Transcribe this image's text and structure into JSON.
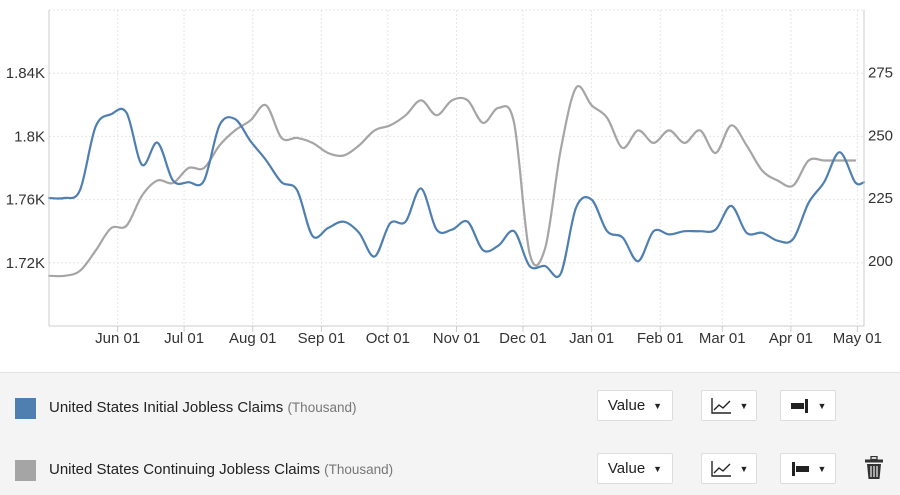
{
  "chart_data": {
    "type": "line",
    "x_tick_labels": [
      "Jun 01",
      "Jul 01",
      "Aug 01",
      "Sep 01",
      "Oct 01",
      "Nov 01",
      "Dec 01",
      "Jan 01",
      "Feb 01",
      "Mar 01",
      "Apr 01",
      "May 01"
    ],
    "x_tick_days": [
      31,
      61,
      92,
      123,
      153,
      184,
      214,
      245,
      276,
      304,
      335,
      365
    ],
    "x_range_days": [
      0,
      368
    ],
    "left_axis": {
      "tick_labels": [
        "1.72K",
        "1.76K",
        "1.8K",
        "1.84K"
      ],
      "tick_values": [
        1720,
        1760,
        1800,
        1840
      ],
      "range": [
        1680,
        1880
      ]
    },
    "right_axis": {
      "tick_labels": [
        "200",
        "225",
        "250",
        "275"
      ],
      "tick_values": [
        200,
        225,
        250,
        275
      ],
      "range": [
        174,
        300
      ]
    },
    "grid": true,
    "series": [
      {
        "name": "United States Initial Jobless Claims",
        "unit": "(Thousand)",
        "axis": "left",
        "color": "#4f7fb0",
        "x": [
          0,
          7,
          14,
          21,
          28,
          35,
          42,
          49,
          56,
          63,
          70,
          77,
          84,
          91,
          98,
          105,
          112,
          119,
          126,
          133,
          140,
          147,
          154,
          161,
          168,
          175,
          182,
          189,
          196,
          203,
          210,
          217,
          224,
          231,
          238,
          245,
          252,
          259,
          266,
          273,
          280,
          287,
          294,
          301,
          308,
          315,
          322,
          329,
          336,
          343,
          350,
          357,
          364,
          368
        ],
        "values": [
          1761,
          1761,
          1766,
          1806,
          1814,
          1815,
          1782,
          1796,
          1772,
          1771,
          1772,
          1807,
          1811,
          1797,
          1785,
          1771,
          1766,
          1737,
          1742,
          1746,
          1739,
          1724,
          1745,
          1746,
          1767,
          1741,
          1741,
          1746,
          1728,
          1731,
          1740,
          1718,
          1718,
          1713,
          1755,
          1760,
          1740,
          1736,
          1721,
          1740,
          1738,
          1740,
          1740,
          1741,
          1756,
          1739,
          1739,
          1734,
          1735,
          1758,
          1771,
          1790,
          1771,
          1771
        ]
      },
      {
        "name": "United States Continuing Jobless Claims",
        "unit": "(Thousand)",
        "axis": "right",
        "color": "#a5a5a5",
        "x": [
          0,
          7,
          14,
          21,
          28,
          35,
          42,
          49,
          56,
          63,
          70,
          77,
          84,
          91,
          98,
          105,
          112,
          119,
          126,
          133,
          140,
          147,
          154,
          161,
          168,
          175,
          182,
          189,
          196,
          203,
          210,
          217,
          224,
          231,
          238,
          245,
          252,
          259,
          266,
          273,
          280,
          287,
          294,
          301,
          308,
          315,
          322,
          329,
          336,
          343,
          350,
          357,
          364
        ],
        "values": [
          194,
          194,
          196,
          204,
          213,
          214,
          226,
          232,
          231,
          237,
          237,
          246,
          252,
          256,
          262,
          249,
          249,
          247,
          243,
          242,
          246,
          252,
          254,
          258,
          264,
          258,
          264,
          264,
          255,
          261,
          255,
          203,
          205,
          244,
          269,
          262,
          257,
          245,
          252,
          247,
          252,
          247,
          252,
          243,
          254,
          246,
          236,
          232,
          230,
          240,
          240,
          240,
          240
        ]
      }
    ]
  },
  "legend": {
    "series": [
      {
        "name": "United States Initial Jobless Claims",
        "unit": "(Thousand)",
        "swatch_color": "#4f7fb0",
        "value_select": "Value",
        "chart_type_icon": "line-chart-icon",
        "axis_icon": "right-axis-icon"
      },
      {
        "name": "United States Continuing Jobless Claims",
        "unit": "(Thousand)",
        "swatch_color": "#a5a5a5",
        "value_select": "Value",
        "chart_type_icon": "line-chart-icon",
        "axis_icon": "left-axis-icon",
        "delete_icon": "trash-icon"
      }
    ]
  }
}
